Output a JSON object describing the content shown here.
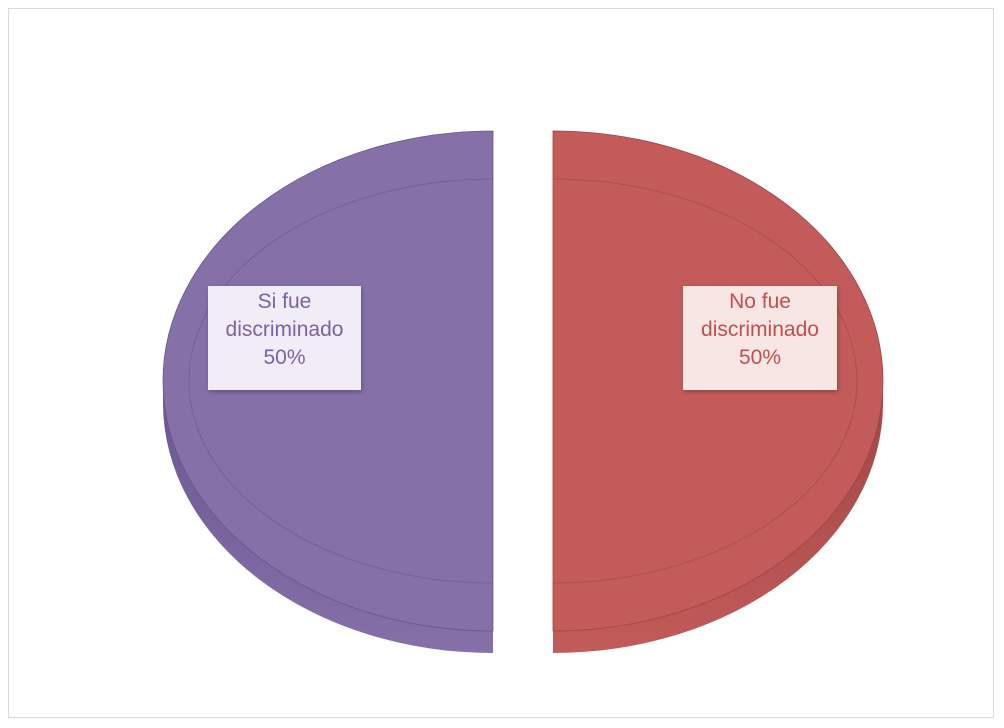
{
  "chart_data": {
    "type": "pie",
    "title": "",
    "slices": [
      {
        "line1": "Si fue",
        "line2": "discriminado",
        "percent_label": "50%",
        "value": 50,
        "color": "#8570a8",
        "side_color": "#6b5590",
        "label_color": "#7c62a4"
      },
      {
        "line1": "No fue",
        "line2": "discriminado",
        "percent_label": "50%",
        "value": 50,
        "color": "#c25b5a",
        "side_color": "#9e4544",
        "label_color": "#c0504d"
      }
    ],
    "legend": "none",
    "exploded": true,
    "style": "3d"
  }
}
